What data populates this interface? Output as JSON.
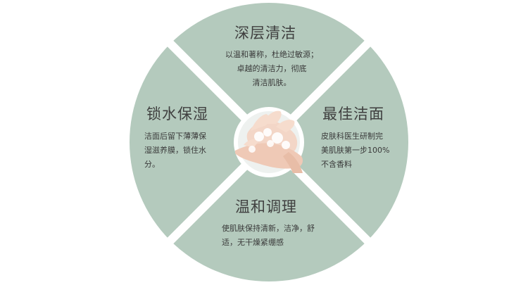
{
  "colors": {
    "quadrant_fill": "#b4cabd",
    "divider": "#ffffff",
    "center_ring": "#ffffff",
    "text": "#3f3f3f"
  },
  "center_image": {
    "icon": "hands-washing-with-foam"
  },
  "quadrants": {
    "top": {
      "title": "深层清洁",
      "lines": [
        "以温和著称，杜绝过敏源；",
        "卓越的清洁力，彻底",
        "清洁肌肤。"
      ]
    },
    "right": {
      "title": "最佳洁面",
      "lines": [
        "皮肤科医生研制完",
        "美肌肤第一步100%",
        "不含香料"
      ]
    },
    "bottom": {
      "title": "温和调理",
      "lines": [
        "使肌肤保持清新，洁净，舒",
        "适，无干燥紧绷感"
      ]
    },
    "left": {
      "title": "锁水保湿",
      "lines": [
        "洁面后留下薄薄保",
        "湿滋养膜，锁住水",
        "分。"
      ]
    }
  }
}
